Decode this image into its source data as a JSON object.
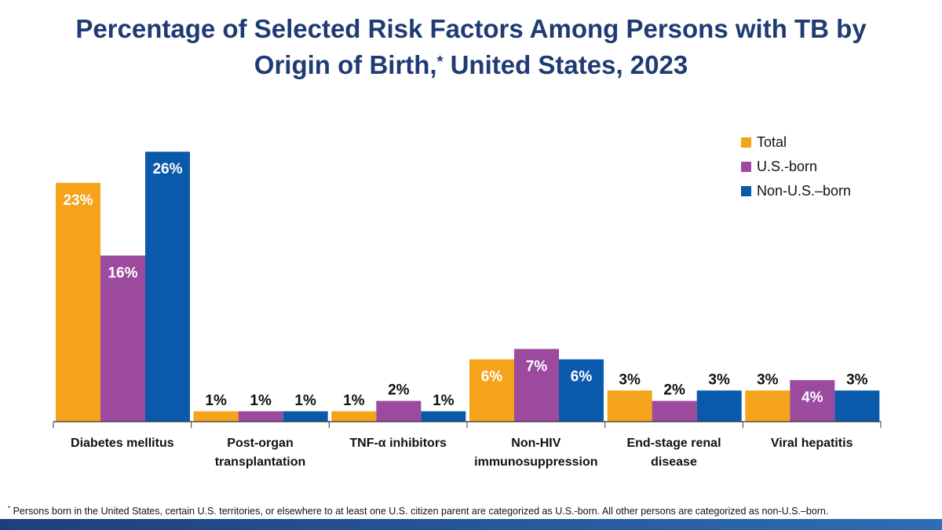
{
  "title_line1": "Percentage of Selected Risk Factors Among Persons with TB by",
  "title_line2_pre": "Origin of Birth,",
  "title_mark": "*",
  "title_line2_post": " United States, 2023",
  "footnote_mark": "*",
  "footnote": " Persons born in the United States, certain U.S. territories, or elsewhere to at least one U.S. citizen parent are categorized as U.S.-born. All other persons are categorized as non-U.S.–born.",
  "colors": {
    "total": "#f5a31a",
    "us": "#9b4a9e",
    "nonus": "#0a5aab",
    "title": "#1f3b73"
  },
  "chart_data": {
    "type": "bar",
    "categories": [
      [
        "Diabetes mellitus"
      ],
      [
        "Post-organ",
        "transplantation"
      ],
      [
        "TNF-α inhibitors"
      ],
      [
        "Non-HIV",
        "immunosuppression"
      ],
      [
        "End-stage renal",
        "disease"
      ],
      [
        "Viral hepatitis"
      ]
    ],
    "series": [
      {
        "name": "Total",
        "key": "total",
        "values": [
          23,
          1,
          1,
          6,
          3,
          3
        ],
        "labels": [
          "23%",
          "1%",
          "1%",
          "6%",
          "3%",
          "3%"
        ]
      },
      {
        "name": "U.S.-born",
        "key": "us",
        "values": [
          16,
          1,
          2,
          7,
          2,
          4
        ],
        "labels": [
          "16%",
          "1%",
          "2%",
          "7%",
          "2%",
          "4%"
        ]
      },
      {
        "name": "Non-U.S.–born",
        "key": "nonus",
        "values": [
          26,
          1,
          1,
          6,
          3,
          3
        ],
        "labels": [
          "26%",
          "1%",
          "1%",
          "6%",
          "3%",
          "3%"
        ]
      }
    ],
    "ylim": [
      0,
      27
    ],
    "legend_position": "top-right"
  }
}
